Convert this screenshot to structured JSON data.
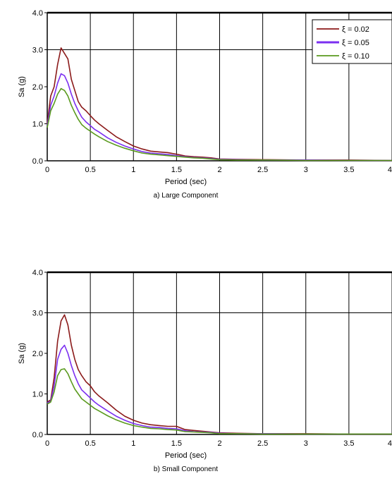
{
  "chart_data": [
    {
      "type": "line",
      "panel_caption": "a) Large Component",
      "xlabel": "Period (sec)",
      "ylabel": "Sa (g)",
      "xlim": [
        0,
        4
      ],
      "ylim": [
        0,
        4
      ],
      "xticks": [
        "0",
        "0.5",
        "1",
        "1.5",
        "2",
        "2.5",
        "3",
        "3.5",
        "4"
      ],
      "yticks": [
        "0.0",
        "1.0",
        "2.0",
        "3.0",
        "4.0"
      ],
      "grid": "vertical lines at x ticks, horizontal line at y = 3.0",
      "legend_position": "top-right",
      "series": [
        {
          "name": "ξ = 0.02",
          "color": "#8b1a1a",
          "x": [
            0,
            0.04,
            0.08,
            0.12,
            0.16,
            0.2,
            0.24,
            0.28,
            0.32,
            0.36,
            0.4,
            0.45,
            0.5,
            0.55,
            0.6,
            0.7,
            0.8,
            0.9,
            1.0,
            1.1,
            1.2,
            1.3,
            1.4,
            1.5,
            1.6,
            1.7,
            1.8,
            1.9,
            2.0,
            2.2,
            2.5,
            3.0,
            3.5,
            4.0
          ],
          "y": [
            1.0,
            1.75,
            2.0,
            2.6,
            3.05,
            2.9,
            2.75,
            2.2,
            1.9,
            1.6,
            1.45,
            1.35,
            1.22,
            1.1,
            1.0,
            0.82,
            0.65,
            0.52,
            0.4,
            0.32,
            0.26,
            0.24,
            0.22,
            0.18,
            0.13,
            0.11,
            0.1,
            0.08,
            0.05,
            0.04,
            0.03,
            0.02,
            0.02,
            0.01
          ]
        },
        {
          "name": "ξ = 0.05",
          "color": "#7b2ff0",
          "x": [
            0,
            0.04,
            0.08,
            0.12,
            0.16,
            0.2,
            0.24,
            0.28,
            0.32,
            0.36,
            0.4,
            0.45,
            0.5,
            0.55,
            0.6,
            0.7,
            0.8,
            0.9,
            1.0,
            1.1,
            1.2,
            1.3,
            1.4,
            1.5,
            1.6,
            1.7,
            1.8,
            1.9,
            2.0,
            2.2,
            2.5,
            3.0,
            3.5,
            4.0
          ],
          "y": [
            0.95,
            1.5,
            1.75,
            2.1,
            2.35,
            2.3,
            2.1,
            1.8,
            1.55,
            1.35,
            1.18,
            1.05,
            0.95,
            0.85,
            0.78,
            0.62,
            0.5,
            0.4,
            0.32,
            0.25,
            0.21,
            0.19,
            0.17,
            0.14,
            0.11,
            0.09,
            0.08,
            0.06,
            0.04,
            0.03,
            0.02,
            0.02,
            0.01,
            0.01
          ]
        },
        {
          "name": "ξ = 0.10",
          "color": "#5a9a1e",
          "x": [
            0,
            0.04,
            0.08,
            0.12,
            0.16,
            0.2,
            0.24,
            0.28,
            0.32,
            0.36,
            0.4,
            0.45,
            0.5,
            0.55,
            0.6,
            0.7,
            0.8,
            0.9,
            1.0,
            1.1,
            1.2,
            1.3,
            1.4,
            1.5,
            1.6,
            1.7,
            1.8,
            1.9,
            2.0,
            2.2,
            2.5,
            3.0,
            3.5,
            4.0
          ],
          "y": [
            0.9,
            1.35,
            1.55,
            1.8,
            1.95,
            1.9,
            1.75,
            1.5,
            1.3,
            1.12,
            0.98,
            0.88,
            0.8,
            0.72,
            0.65,
            0.52,
            0.42,
            0.34,
            0.27,
            0.21,
            0.18,
            0.16,
            0.14,
            0.12,
            0.1,
            0.08,
            0.07,
            0.05,
            0.03,
            0.02,
            0.02,
            0.01,
            0.01,
            0.01
          ]
        }
      ]
    },
    {
      "type": "line",
      "panel_caption": "b) Small Component",
      "xlabel": "Period (sec)",
      "ylabel": "Sa (g)",
      "xlim": [
        0,
        4
      ],
      "ylim": [
        0,
        4
      ],
      "xticks": [
        "0",
        "0.5",
        "1",
        "1.5",
        "2",
        "2.5",
        "3",
        "3.5",
        "4"
      ],
      "yticks": [
        "0.0",
        "1.0",
        "2.0",
        "3.0",
        "4.0"
      ],
      "grid": "vertical lines at x ticks, horizontal line at y = 3.0",
      "series": [
        {
          "name": "ξ = 0.02",
          "color": "#8b1a1a",
          "x": [
            0,
            0.04,
            0.08,
            0.12,
            0.16,
            0.2,
            0.24,
            0.28,
            0.32,
            0.36,
            0.4,
            0.45,
            0.5,
            0.55,
            0.6,
            0.7,
            0.8,
            0.9,
            1.0,
            1.1,
            1.2,
            1.3,
            1.4,
            1.5,
            1.6,
            1.7,
            1.8,
            1.9,
            2.0,
            2.2,
            2.5,
            3.0,
            3.5,
            4.0
          ],
          "y": [
            0.8,
            0.85,
            1.4,
            2.3,
            2.8,
            2.95,
            2.7,
            2.2,
            1.85,
            1.6,
            1.45,
            1.3,
            1.2,
            1.05,
            0.95,
            0.78,
            0.6,
            0.45,
            0.35,
            0.28,
            0.24,
            0.22,
            0.2,
            0.2,
            0.12,
            0.1,
            0.08,
            0.06,
            0.04,
            0.03,
            0.02,
            0.02,
            0.01,
            0.01
          ]
        },
        {
          "name": "ξ = 0.05",
          "color": "#7b2ff0",
          "x": [
            0,
            0.04,
            0.08,
            0.12,
            0.16,
            0.2,
            0.24,
            0.28,
            0.32,
            0.36,
            0.4,
            0.45,
            0.5,
            0.55,
            0.6,
            0.7,
            0.8,
            0.9,
            1.0,
            1.1,
            1.2,
            1.3,
            1.4,
            1.5,
            1.6,
            1.7,
            1.8,
            1.9,
            2.0,
            2.2,
            2.5,
            3.0,
            3.5,
            4.0
          ],
          "y": [
            0.78,
            0.82,
            1.2,
            1.85,
            2.1,
            2.2,
            2.0,
            1.7,
            1.45,
            1.25,
            1.1,
            1.0,
            0.9,
            0.8,
            0.72,
            0.58,
            0.45,
            0.35,
            0.27,
            0.22,
            0.18,
            0.17,
            0.15,
            0.14,
            0.09,
            0.07,
            0.06,
            0.05,
            0.03,
            0.02,
            0.02,
            0.01,
            0.01,
            0.01
          ]
        },
        {
          "name": "ξ = 0.10",
          "color": "#5a9a1e",
          "x": [
            0,
            0.04,
            0.08,
            0.12,
            0.16,
            0.2,
            0.24,
            0.28,
            0.32,
            0.36,
            0.4,
            0.45,
            0.5,
            0.55,
            0.6,
            0.7,
            0.8,
            0.9,
            1.0,
            1.1,
            1.2,
            1.3,
            1.4,
            1.5,
            1.6,
            1.7,
            1.8,
            1.9,
            2.0,
            2.2,
            2.5,
            3.0,
            3.5,
            4.0
          ],
          "y": [
            0.75,
            0.8,
            1.05,
            1.45,
            1.6,
            1.62,
            1.5,
            1.3,
            1.12,
            1.0,
            0.88,
            0.8,
            0.72,
            0.64,
            0.58,
            0.46,
            0.36,
            0.28,
            0.22,
            0.18,
            0.15,
            0.14,
            0.12,
            0.11,
            0.07,
            0.06,
            0.05,
            0.04,
            0.02,
            0.02,
            0.01,
            0.01,
            0.01,
            0.01
          ]
        }
      ]
    }
  ]
}
